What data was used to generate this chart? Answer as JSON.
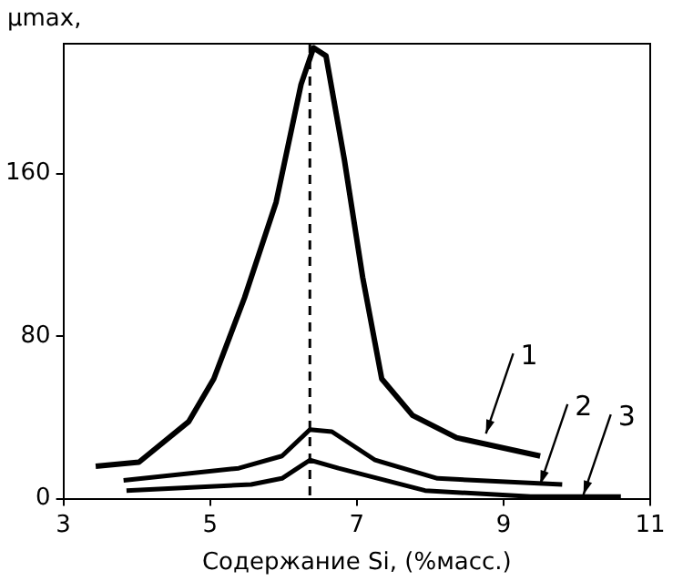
{
  "chart_data": {
    "type": "line",
    "xlabel": "Содержание Si, (%масс.)",
    "ylabel": "µmax,",
    "xlim": [
      3,
      11
    ],
    "xticks": [
      3,
      5,
      7,
      9,
      11
    ],
    "ylim": [
      0,
      224
    ],
    "yticks": [
      0,
      80,
      160
    ],
    "grid": false,
    "legend": false,
    "marker": "none",
    "line_style": "solid",
    "series": [
      {
        "color": "#000000",
        "x": [
          3.44,
          4.03,
          4.71,
          5.05,
          5.47,
          5.9,
          6.24,
          6.41,
          6.58,
          6.83,
          7.08,
          7.34,
          7.76,
          8.36,
          9.5
        ],
        "values": [
          16,
          18,
          38,
          59,
          99,
          146,
          204,
          222,
          218,
          167,
          109,
          59,
          41,
          30,
          21
        ]
      },
      {
        "color": "#000000",
        "x": [
          3.82,
          5.39,
          5.98,
          6.36,
          6.66,
          7.25,
          8.1,
          9.8
        ],
        "values": [
          9,
          15,
          21,
          34,
          33,
          19,
          10,
          7
        ]
      },
      {
        "color": "#000000",
        "x": [
          3.86,
          5.56,
          5.98,
          6.36,
          6.75,
          7.93,
          9.37,
          10.6
        ],
        "values": [
          4,
          7,
          10,
          19,
          15,
          4,
          1,
          1
        ]
      }
    ],
    "ref_lines": [
      {
        "axis": "x",
        "value": 6.36,
        "line_style": "dashed",
        "color": "#000000"
      }
    ],
    "annotations": [
      {
        "text": "1",
        "x": 8.76,
        "y": 32
      },
      {
        "text": "2",
        "x": 9.5,
        "y": 7
      },
      {
        "text": "3",
        "x": 10.09,
        "y": 2
      }
    ]
  }
}
